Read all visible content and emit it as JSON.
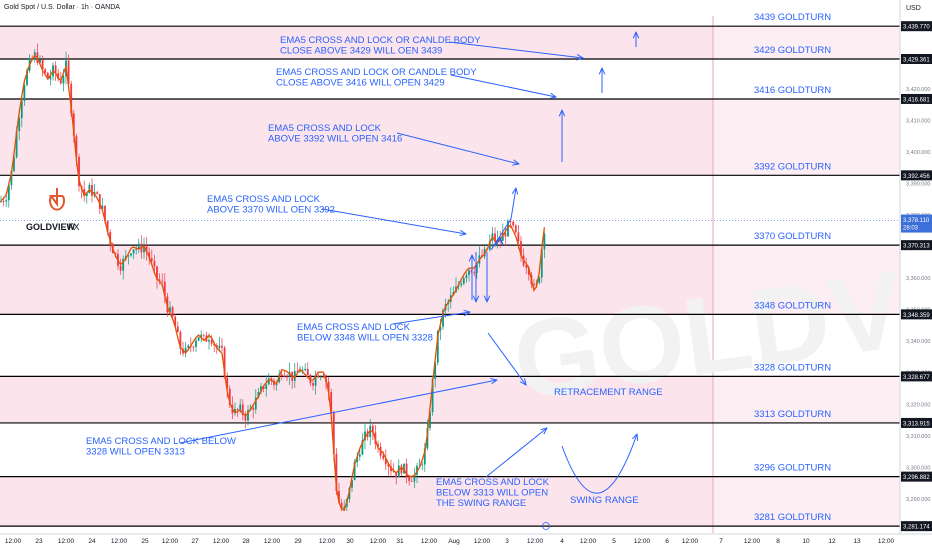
{
  "header": {
    "symbol_text": "Gold Spot / U.S. Dollar · 1h · OANDA",
    "currency": "USD"
  },
  "logo": {
    "brand_bold": "GOLDVIEW",
    "brand_light": "FX"
  },
  "watermark": {
    "text": "GOLDVIEW F"
  },
  "colors": {
    "zone_fill": "#fce4ec",
    "zone_edge": "#e7a5bf",
    "level_line": "#000000",
    "candle_up": "#089981",
    "candle_down": "#f23645",
    "ema": "#e65100",
    "annotation": "#2962ff",
    "price_tag": "#131722",
    "current_price_tag": "#3c6fd9",
    "logo_accent": "#e2572f"
  },
  "chart_data": {
    "type": "candlestick",
    "instrument": "Gold Spot / U.S. Dollar",
    "timeframe": "1h",
    "broker": "OANDA",
    "currency": "USD",
    "ylim": [
      3279,
      3443
    ],
    "y_ticks": [
      3290,
      3300,
      3310,
      3320,
      3330,
      3340,
      3350,
      3360,
      3380,
      3390,
      3400,
      3410,
      3420
    ],
    "x_tick_labels": [
      "12:00",
      "23",
      "12:00",
      "24",
      "12:00",
      "25",
      "12:00",
      "27",
      "12:00",
      "28",
      "12:00",
      "29",
      "12:00",
      "30",
      "12:00",
      "31",
      "12:00",
      "Aug",
      "12:00",
      "3",
      "12:00",
      "4",
      "12:00",
      "5",
      "12:00",
      "6",
      "12:00",
      "7",
      "12:00",
      "8",
      "10",
      "12",
      "13",
      "12:00",
      "14"
    ],
    "current_price": {
      "value": "3,378.110",
      "countdown": "28:03",
      "price": 3378.11
    },
    "levels": [
      {
        "price": 3439.77,
        "tag": "3,439.770",
        "label": "3439 GOLDTURN"
      },
      {
        "price": 3429.361,
        "tag": "3,429.361",
        "label": "3429 GOLDTURN"
      },
      {
        "price": 3416.681,
        "tag": "3,416.681",
        "label": "3416 GOLDTURN"
      },
      {
        "price": 3392.456,
        "tag": "3,392.456",
        "label": "3392 GOLDTURN"
      },
      {
        "price": 3370.313,
        "tag": "3,370.313",
        "label": "3370 GOLDTURN"
      },
      {
        "price": 3348.359,
        "tag": "3,348.359",
        "label": "3348 GOLDTURN"
      },
      {
        "price": 3328.677,
        "tag": "3,328.677",
        "label": "3328 GOLDTURN"
      },
      {
        "price": 3313.915,
        "tag": "3,313.915",
        "label": "3313 GOLDTURN"
      },
      {
        "price": 3296.882,
        "tag": "3,296.882",
        "label": "3296 GOLDTURN"
      },
      {
        "price": 3281.174,
        "tag": "3,281.174",
        "label": "3281 GOLDTURN"
      }
    ],
    "zones": [
      {
        "from": 3429.361,
        "to": 3439.77
      },
      {
        "from": 3392.456,
        "to": 3416.681
      },
      {
        "from": 3348.359,
        "to": 3370.313
      },
      {
        "from": 3313.915,
        "to": 3328.677
      },
      {
        "from": 3281.174,
        "to": 3296.882
      }
    ],
    "annotations": [
      {
        "lines": [
          "EMA5 CROSS AND LOCK OR CANLDE BODY",
          "CLOSE ABOVE 3429 WILL OEN 3439"
        ]
      },
      {
        "lines": [
          "EMA5 CROSS AND LOCK OR CANDLE BODY",
          "CLOSE ABOVE 3416 WILL OPEN 3429"
        ]
      },
      {
        "lines": [
          "EMA5 CROSS AND LOCK",
          "ABOVE 3392 WILL OPEN 3416"
        ]
      },
      {
        "lines": [
          "EMA5 CROSS AND LOCK",
          "ABOVE 3370 WILL OEN 3392"
        ]
      },
      {
        "lines": [
          "EMA5 CROSS AND LOCK",
          "BELOW 3348 WILL OPEN 3328"
        ]
      },
      {
        "lines": [
          "EMA5 CROSS AND LOCK BELOW",
          "3328 WILL OPEN 3313"
        ]
      },
      {
        "lines": [
          "EMA5 CROSS AND LOCK",
          "BELOW 3313 WILL OPEN",
          "THE SWING RANGE"
        ]
      },
      {
        "lines": [
          "RETRACEMENT RANGE"
        ]
      },
      {
        "lines": [
          "SWING RANGE"
        ]
      }
    ],
    "price_path": [
      [
        0,
        3384
      ],
      [
        6,
        3386
      ],
      [
        12,
        3394
      ],
      [
        18,
        3410
      ],
      [
        24,
        3422
      ],
      [
        30,
        3428
      ],
      [
        36,
        3431
      ],
      [
        42,
        3426
      ],
      [
        48,
        3423
      ],
      [
        54,
        3426
      ],
      [
        60,
        3422
      ],
      [
        66,
        3427
      ],
      [
        72,
        3412
      ],
      [
        78,
        3392
      ],
      [
        84,
        3386
      ],
      [
        90,
        3388
      ],
      [
        96,
        3386
      ],
      [
        102,
        3382
      ],
      [
        108,
        3374
      ],
      [
        114,
        3368
      ],
      [
        120,
        3364
      ],
      [
        126,
        3366
      ],
      [
        132,
        3370
      ],
      [
        138,
        3369
      ],
      [
        144,
        3370
      ],
      [
        150,
        3366
      ],
      [
        156,
        3360
      ],
      [
        162,
        3358
      ],
      [
        168,
        3350
      ],
      [
        174,
        3346
      ],
      [
        180,
        3338
      ],
      [
        186,
        3336
      ],
      [
        192,
        3339
      ],
      [
        198,
        3342
      ],
      [
        204,
        3340
      ],
      [
        210,
        3342
      ],
      [
        216,
        3338
      ],
      [
        222,
        3336
      ],
      [
        228,
        3322
      ],
      [
        234,
        3317
      ],
      [
        240,
        3318
      ],
      [
        246,
        3316
      ],
      [
        252,
        3319
      ],
      [
        258,
        3322
      ],
      [
        264,
        3326
      ],
      [
        270,
        3328
      ],
      [
        276,
        3326
      ],
      [
        282,
        3331
      ],
      [
        288,
        3330
      ],
      [
        294,
        3328
      ],
      [
        300,
        3331
      ],
      [
        306,
        3329
      ],
      [
        312,
        3327
      ],
      [
        318,
        3330
      ],
      [
        324,
        3330
      ],
      [
        330,
        3322
      ],
      [
        336,
        3294
      ],
      [
        340,
        3287
      ],
      [
        344,
        3286
      ],
      [
        348,
        3290
      ],
      [
        354,
        3300
      ],
      [
        360,
        3306
      ],
      [
        366,
        3310
      ],
      [
        372,
        3312
      ],
      [
        378,
        3306
      ],
      [
        384,
        3304
      ],
      [
        390,
        3300
      ],
      [
        396,
        3298
      ],
      [
        402,
        3300
      ],
      [
        408,
        3297
      ],
      [
        414,
        3297
      ],
      [
        420,
        3300
      ],
      [
        426,
        3306
      ],
      [
        432,
        3325
      ],
      [
        438,
        3342
      ],
      [
        444,
        3350
      ],
      [
        450,
        3353
      ],
      [
        456,
        3356
      ],
      [
        462,
        3360
      ],
      [
        468,
        3363
      ],
      [
        474,
        3363
      ],
      [
        480,
        3366
      ],
      [
        486,
        3368
      ],
      [
        492,
        3373
      ],
      [
        498,
        3371
      ],
      [
        504,
        3374
      ],
      [
        510,
        3377
      ],
      [
        516,
        3373
      ],
      [
        522,
        3366
      ],
      [
        528,
        3364
      ],
      [
        534,
        3356
      ],
      [
        538,
        3358
      ],
      [
        542,
        3370
      ],
      [
        546,
        3380
      ]
    ]
  }
}
